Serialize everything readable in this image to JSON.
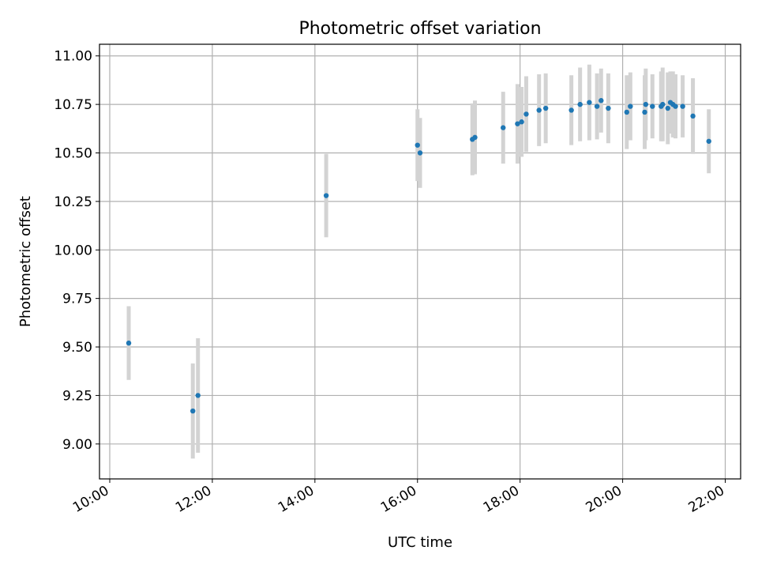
{
  "chart_data": {
    "type": "scatter",
    "title": "Photometric offset variation",
    "xlabel": "UTC time",
    "ylabel": "Photometric offset",
    "x_unit": "hours (UTC)",
    "xlim": [
      9.8,
      22.3
    ],
    "ylim": [
      8.82,
      11.06
    ],
    "xticks": [
      10,
      12,
      14,
      16,
      18,
      20,
      22
    ],
    "xtick_labels": [
      "10:00",
      "12:00",
      "14:00",
      "16:00",
      "18:00",
      "20:00",
      "22:00"
    ],
    "yticks": [
      9.0,
      9.25,
      9.5,
      9.75,
      10.0,
      10.25,
      10.5,
      10.75,
      11.0
    ],
    "ytick_labels": [
      "9.00",
      "9.25",
      "9.50",
      "9.75",
      "10.00",
      "10.25",
      "10.50",
      "10.75",
      "11.00"
    ],
    "grid": true,
    "marker_color": "#1f77b4",
    "errorbar_color": "#d3d3d3",
    "points": [
      {
        "x": 10.37,
        "y": 9.52,
        "err": 0.19
      },
      {
        "x": 11.62,
        "y": 9.17,
        "err": 0.245
      },
      {
        "x": 11.72,
        "y": 9.25,
        "err": 0.295
      },
      {
        "x": 14.22,
        "y": 10.28,
        "err": 0.215
      },
      {
        "x": 16.0,
        "y": 10.54,
        "err": 0.185
      },
      {
        "x": 16.05,
        "y": 10.5,
        "err": 0.18
      },
      {
        "x": 17.07,
        "y": 10.57,
        "err": 0.185
      },
      {
        "x": 17.12,
        "y": 10.58,
        "err": 0.19
      },
      {
        "x": 17.67,
        "y": 10.63,
        "err": 0.185
      },
      {
        "x": 17.95,
        "y": 10.65,
        "err": 0.205
      },
      {
        "x": 18.03,
        "y": 10.66,
        "err": 0.18
      },
      {
        "x": 18.12,
        "y": 10.7,
        "err": 0.195
      },
      {
        "x": 18.37,
        "y": 10.72,
        "err": 0.185
      },
      {
        "x": 18.5,
        "y": 10.73,
        "err": 0.18
      },
      {
        "x": 19.0,
        "y": 10.72,
        "err": 0.18
      },
      {
        "x": 19.17,
        "y": 10.75,
        "err": 0.19
      },
      {
        "x": 19.35,
        "y": 10.76,
        "err": 0.195
      },
      {
        "x": 19.5,
        "y": 10.74,
        "err": 0.17
      },
      {
        "x": 19.58,
        "y": 10.77,
        "err": 0.165
      },
      {
        "x": 19.72,
        "y": 10.73,
        "err": 0.18
      },
      {
        "x": 20.08,
        "y": 10.71,
        "err": 0.19
      },
      {
        "x": 20.15,
        "y": 10.74,
        "err": 0.175
      },
      {
        "x": 20.43,
        "y": 10.71,
        "err": 0.19
      },
      {
        "x": 20.45,
        "y": 10.75,
        "err": 0.185
      },
      {
        "x": 20.58,
        "y": 10.74,
        "err": 0.165
      },
      {
        "x": 20.75,
        "y": 10.74,
        "err": 0.18
      },
      {
        "x": 20.78,
        "y": 10.75,
        "err": 0.19
      },
      {
        "x": 20.88,
        "y": 10.73,
        "err": 0.185
      },
      {
        "x": 20.93,
        "y": 10.76,
        "err": 0.16
      },
      {
        "x": 20.98,
        "y": 10.75,
        "err": 0.17
      },
      {
        "x": 21.03,
        "y": 10.74,
        "err": 0.165
      },
      {
        "x": 21.17,
        "y": 10.74,
        "err": 0.16
      },
      {
        "x": 21.37,
        "y": 10.69,
        "err": 0.195
      },
      {
        "x": 21.68,
        "y": 10.56,
        "err": 0.165
      }
    ]
  }
}
